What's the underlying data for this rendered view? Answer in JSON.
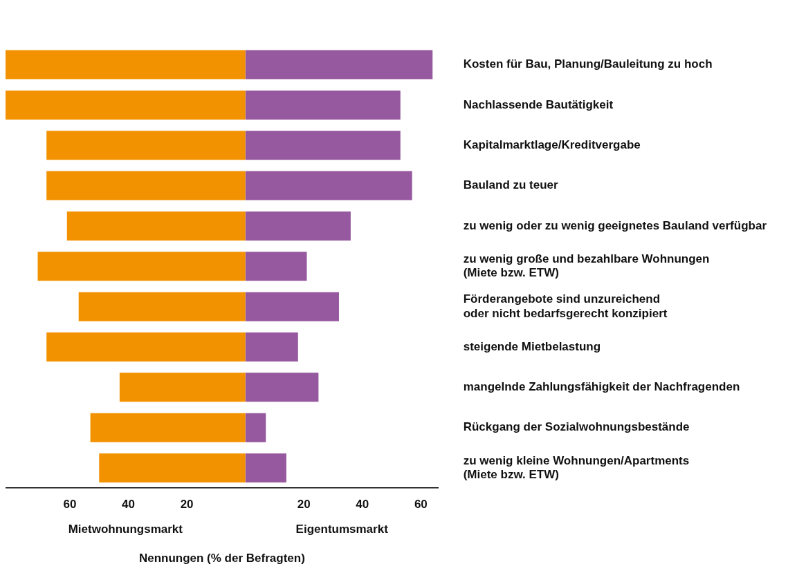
{
  "chart_data": {
    "type": "bar",
    "orientation": "horizontal",
    "stacked": true,
    "xlabel": "Nennungen (% der Befragten)",
    "categories": [
      "Kosten für Bau, Planung/Bauleitung zu hoch",
      "Nachlassende Bautätigkeit",
      "Kapitalmarktlage/Kreditvergabe",
      "Bauland zu teuer",
      "zu wenig oder zu wenig geeignetes Bauland verfügbar",
      "zu wenig große und bezahlbare Wohnungen\n(Miete bzw. ETW)",
      "Förderangebote sind unzureichend\noder nicht bedarfsgerecht konzipiert",
      "steigende Mietbelastung",
      "mangelnde Zahlungsfähigkeit der Nachfragenden",
      "Rückgang der Sozialwohnungsbestände",
      "zu wenig kleine Wohnungen/Apartments\n(Miete bzw. ETW)"
    ],
    "series": [
      {
        "color": "#f39200",
        "values": [
          -82,
          -82,
          -68,
          -68,
          -61,
          -71,
          -57,
          -68,
          -43,
          -53,
          -50
        ]
      },
      {
        "color": "#96589e",
        "values": [
          64,
          53,
          53,
          57,
          36,
          21,
          32,
          18,
          25,
          7,
          14
        ]
      }
    ],
    "xlim": [
      -82,
      66
    ],
    "xticks": [
      {
        "value": -60,
        "label": "60"
      },
      {
        "value": -40,
        "label": "40"
      },
      {
        "value": -20,
        "label": "20"
      },
      {
        "value": 20,
        "label": "20"
      },
      {
        "value": 40,
        "label": "40"
      },
      {
        "value": 60,
        "label": "60"
      }
    ],
    "annotations": [
      "Mietwohnungsmarkt",
      "Eigentumsmarkt"
    ],
    "grid": false,
    "legend": false
  }
}
